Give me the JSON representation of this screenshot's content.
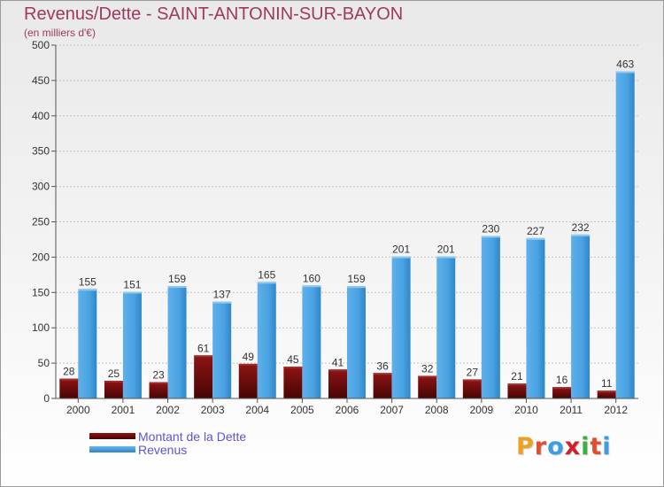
{
  "chart_data": {
    "type": "bar",
    "title": "Revenus/Dette - SAINT-ANTONIN-SUR-BAYON",
    "subtitle": "(en milliers d'€)",
    "categories": [
      "2000",
      "2001",
      "2002",
      "2003",
      "2004",
      "2005",
      "2006",
      "2007",
      "2008",
      "2009",
      "2010",
      "2011",
      "2012"
    ],
    "series": [
      {
        "name": "Montant de la Dette",
        "values": [
          28,
          25,
          23,
          61,
          49,
          45,
          41,
          36,
          32,
          27,
          21,
          16,
          11
        ],
        "color": "#7a0e0e"
      },
      {
        "name": "Revenus",
        "values": [
          155,
          151,
          159,
          137,
          165,
          160,
          159,
          201,
          201,
          230,
          227,
          232,
          463
        ],
        "color": "#4aa3e3"
      }
    ],
    "yticks": [
      "0",
      "50",
      "100",
      "150",
      "200",
      "250",
      "300",
      "350",
      "400",
      "450",
      "500"
    ],
    "ylim": [
      0,
      500
    ],
    "grid": true,
    "legend": "bottom-left"
  },
  "logo": {
    "text": "Proxiti",
    "letters": [
      {
        "ch": "P",
        "color": "#f0a020"
      },
      {
        "ch": "r",
        "color": "#e05030"
      },
      {
        "ch": "o",
        "color": "#3a9ee0"
      },
      {
        "ch": "x",
        "color": "#d0202a"
      },
      {
        "ch": "i",
        "color": "#3ab040"
      },
      {
        "ch": "t",
        "color": "#e05030"
      },
      {
        "ch": "i",
        "color": "#3a9ee0"
      }
    ]
  }
}
